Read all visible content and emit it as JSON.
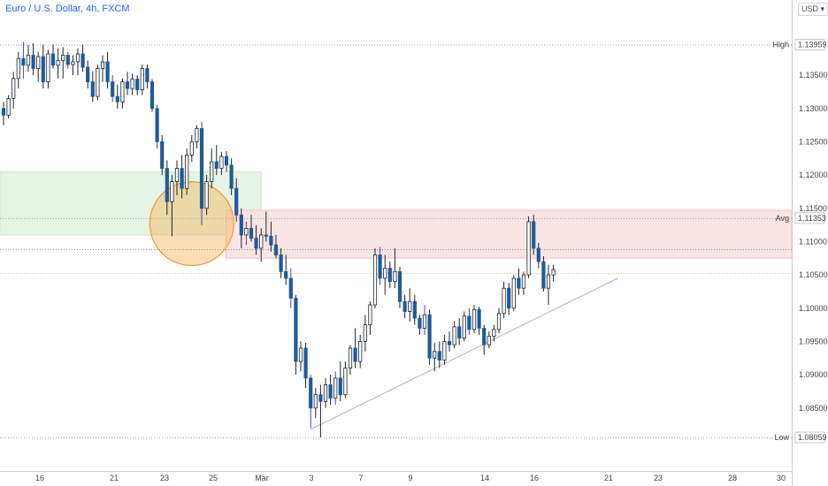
{
  "header": {
    "title": "Euro / U.S. Dollar, 4h, FXCM",
    "currency": "USD"
  },
  "colors": {
    "up": "#ffffff",
    "down": "#1e5b99",
    "outline": "#1c2430",
    "wick_extra": "#4b3fb5",
    "demand_zone": "#e6f4e6",
    "supply_zone": "#fbe4e4",
    "circle_fill": "#f6a73e",
    "circle_stroke": "#f29a2e",
    "trendline": "#b0b4c0"
  },
  "chart_data": {
    "type": "candlestick",
    "title": "Euro / U.S. Dollar, 4h, FXCM",
    "xlabel": "",
    "ylabel": "",
    "ylim": [
      1.078,
      1.146
    ],
    "x_ticks": [
      "16",
      "21",
      "23",
      "25",
      "Mar",
      "3",
      "7",
      "9",
      "14",
      "16",
      "21",
      "23",
      "28",
      "30"
    ],
    "y_ticks": [
      "1.13500",
      "1.13000",
      "1.12500",
      "1.12000",
      "1.11500",
      "1.11000",
      "1.10500",
      "1.10000",
      "1.09500",
      "1.09000",
      "1.08500"
    ],
    "price_labels": [
      {
        "name": "High",
        "value": "1.13959"
      },
      {
        "name": "Avg",
        "value": "1.11353"
      },
      {
        "name": "Low",
        "value": "1.08059"
      }
    ],
    "zones": [
      {
        "kind": "demand",
        "from_bar": 0,
        "to_bar": 52,
        "top": 1.1205,
        "bottom": 1.111
      },
      {
        "kind": "supply",
        "from_bar": 46,
        "to_bar": 200,
        "top": 1.1147,
        "bottom": 1.1075
      }
    ],
    "dotted_levels": [
      1.1088,
      1.1052
    ],
    "trendline": {
      "from": [
        62,
        1.0818
      ],
      "to": [
        124,
        1.1045
      ]
    },
    "highlight_circle": {
      "bar": 38,
      "price": 1.1127,
      "radius_price": 0.0063
    },
    "candles": [
      [
        1.13,
        1.131,
        1.1275,
        1.129
      ],
      [
        1.129,
        1.132,
        1.1285,
        1.1315
      ],
      [
        1.1315,
        1.1355,
        1.13,
        1.1345
      ],
      [
        1.1345,
        1.1385,
        1.133,
        1.1375
      ],
      [
        1.1375,
        1.14,
        1.1345,
        1.1365
      ],
      [
        1.1365,
        1.1395,
        1.1355,
        1.138
      ],
      [
        1.138,
        1.1398,
        1.135,
        1.136
      ],
      [
        1.136,
        1.1385,
        1.134,
        1.1378
      ],
      [
        1.1378,
        1.1396,
        1.133,
        1.134
      ],
      [
        1.134,
        1.1388,
        1.133,
        1.1382
      ],
      [
        1.1382,
        1.1396,
        1.136,
        1.1365
      ],
      [
        1.1365,
        1.139,
        1.1345,
        1.1372
      ],
      [
        1.1372,
        1.1392,
        1.1345,
        1.138
      ],
      [
        1.138,
        1.1385,
        1.136,
        1.1366
      ],
      [
        1.1366,
        1.138,
        1.135,
        1.137
      ],
      [
        1.137,
        1.139,
        1.135,
        1.1382
      ],
      [
        1.1382,
        1.1396,
        1.1355,
        1.1362
      ],
      [
        1.1362,
        1.1372,
        1.133,
        1.134
      ],
      [
        1.134,
        1.1356,
        1.131,
        1.1318
      ],
      [
        1.1318,
        1.1366,
        1.1312,
        1.136
      ],
      [
        1.136,
        1.138,
        1.134,
        1.137
      ],
      [
        1.137,
        1.1385,
        1.133,
        1.134
      ],
      [
        1.134,
        1.135,
        1.131,
        1.1318
      ],
      [
        1.1318,
        1.1336,
        1.13,
        1.131
      ],
      [
        1.131,
        1.1345,
        1.13,
        1.134
      ],
      [
        1.134,
        1.1355,
        1.132,
        1.133
      ],
      [
        1.133,
        1.1352,
        1.132,
        1.1344
      ],
      [
        1.1344,
        1.135,
        1.132,
        1.1328
      ],
      [
        1.1328,
        1.1366,
        1.132,
        1.136
      ],
      [
        1.136,
        1.1366,
        1.133,
        1.134
      ],
      [
        1.134,
        1.1344,
        1.1295,
        1.13
      ],
      [
        1.13,
        1.1305,
        1.124,
        1.125
      ],
      [
        1.125,
        1.126,
        1.12,
        1.121
      ],
      [
        1.121,
        1.1222,
        1.114,
        1.116
      ],
      [
        1.116,
        1.12,
        1.1108,
        1.119
      ],
      [
        1.119,
        1.1222,
        1.117,
        1.121
      ],
      [
        1.121,
        1.123,
        1.1165,
        1.118
      ],
      [
        1.118,
        1.124,
        1.117,
        1.123
      ],
      [
        1.123,
        1.126,
        1.122,
        1.125
      ],
      [
        1.125,
        1.1275,
        1.124,
        1.127
      ],
      [
        1.127,
        1.128,
        1.1125,
        1.115
      ],
      [
        1.115,
        1.12,
        1.114,
        1.119
      ],
      [
        1.119,
        1.124,
        1.118,
        1.122
      ],
      [
        1.122,
        1.1245,
        1.12,
        1.121
      ],
      [
        1.121,
        1.1235,
        1.12,
        1.1228
      ],
      [
        1.1228,
        1.1236,
        1.1205,
        1.1215
      ],
      [
        1.1215,
        1.1225,
        1.117,
        1.118
      ],
      [
        1.118,
        1.1195,
        1.113,
        1.114
      ],
      [
        1.114,
        1.115,
        1.109,
        1.111
      ],
      [
        1.111,
        1.113,
        1.1095,
        1.112
      ],
      [
        1.112,
        1.114,
        1.11,
        1.1105
      ],
      [
        1.1105,
        1.1125,
        1.108,
        1.109
      ],
      [
        1.109,
        1.112,
        1.107,
        1.111
      ],
      [
        1.111,
        1.1145,
        1.11,
        1.1108
      ],
      [
        1.1108,
        1.113,
        1.1085,
        1.1095
      ],
      [
        1.1095,
        1.111,
        1.1075,
        1.108
      ],
      [
        1.108,
        1.109,
        1.1045,
        1.1055
      ],
      [
        1.1055,
        1.108,
        1.1035,
        1.1045
      ],
      [
        1.1045,
        1.106,
        1.1,
        1.1015
      ],
      [
        1.1015,
        1.102,
        1.09,
        1.092
      ],
      [
        1.092,
        1.095,
        1.0905,
        1.094
      ],
      [
        1.094,
        1.0948,
        1.088,
        1.0895
      ],
      [
        1.0895,
        1.09,
        1.082,
        1.085
      ],
      [
        1.085,
        1.088,
        1.0835,
        1.087
      ],
      [
        1.087,
        1.0885,
        1.0806,
        1.086
      ],
      [
        1.086,
        1.0895,
        1.085,
        1.0885
      ],
      [
        1.0885,
        1.09,
        1.0855,
        1.0865
      ],
      [
        1.0865,
        1.0905,
        1.0855,
        1.0895
      ],
      [
        1.0895,
        1.092,
        1.086,
        1.087
      ],
      [
        1.087,
        1.092,
        1.0865,
        1.091
      ],
      [
        1.091,
        1.0945,
        1.09,
        1.094
      ],
      [
        1.094,
        1.097,
        1.091,
        1.092
      ],
      [
        1.092,
        1.096,
        1.091,
        1.095
      ],
      [
        1.095,
        1.099,
        1.0935,
        1.0975
      ],
      [
        1.0975,
        1.101,
        1.096,
        1.1005
      ],
      [
        1.1005,
        1.109,
        1.1,
        1.108
      ],
      [
        1.108,
        1.1092,
        1.1035,
        1.1045
      ],
      [
        1.1045,
        1.108,
        1.102,
        1.106
      ],
      [
        1.106,
        1.107,
        1.103,
        1.104
      ],
      [
        1.104,
        1.109,
        1.103,
        1.1055
      ],
      [
        1.1055,
        1.1062,
        1.1,
        1.101
      ],
      [
        1.101,
        1.102,
        1.0985,
        1.0995
      ],
      [
        1.0995,
        1.103,
        1.098,
        1.101
      ],
      [
        1.101,
        1.102,
        1.0975,
        1.0985
      ],
      [
        1.0985,
        1.099,
        1.096,
        1.097
      ],
      [
        1.097,
        1.1005,
        1.096,
        1.099
      ],
      [
        1.099,
        1.0998,
        1.0915,
        1.0925
      ],
      [
        1.0925,
        1.0948,
        1.0905,
        1.0935
      ],
      [
        1.0935,
        1.095,
        1.091,
        1.0922
      ],
      [
        1.0922,
        1.096,
        1.0915,
        1.095
      ],
      [
        1.095,
        1.0965,
        1.0935,
        1.0945
      ],
      [
        1.0945,
        1.098,
        1.094,
        1.0972
      ],
      [
        1.0972,
        1.0985,
        1.0945,
        1.0955
      ],
      [
        1.0955,
        1.0995,
        1.095,
        1.0988
      ],
      [
        1.0988,
        1.1,
        1.096,
        1.0968
      ],
      [
        1.0968,
        1.1005,
        1.0962,
        1.0998
      ],
      [
        1.0998,
        1.1002,
        1.096,
        1.097
      ],
      [
        1.097,
        1.0975,
        1.093,
        1.0945
      ],
      [
        1.0945,
        1.0965,
        1.094,
        1.0958
      ],
      [
        1.0958,
        1.0975,
        1.095,
        1.0968
      ],
      [
        1.0968,
        1.1,
        1.0962,
        1.0992
      ],
      [
        1.0992,
        1.104,
        1.0985,
        1.103
      ],
      [
        1.103,
        1.1038,
        1.099,
        1.1
      ],
      [
        1.1,
        1.105,
        1.0995,
        1.1045
      ],
      [
        1.1045,
        1.106,
        1.102,
        1.103
      ],
      [
        1.103,
        1.1055,
        1.102,
        1.105
      ],
      [
        1.105,
        1.1138,
        1.1045,
        1.113
      ],
      [
        1.113,
        1.114,
        1.108,
        1.109
      ],
      [
        1.109,
        1.1098,
        1.106,
        1.107
      ],
      [
        1.107,
        1.1078,
        1.1025,
        1.103
      ],
      [
        1.103,
        1.1065,
        1.1005,
        1.105
      ],
      [
        1.105,
        1.1065,
        1.104,
        1.1058
      ]
    ]
  }
}
